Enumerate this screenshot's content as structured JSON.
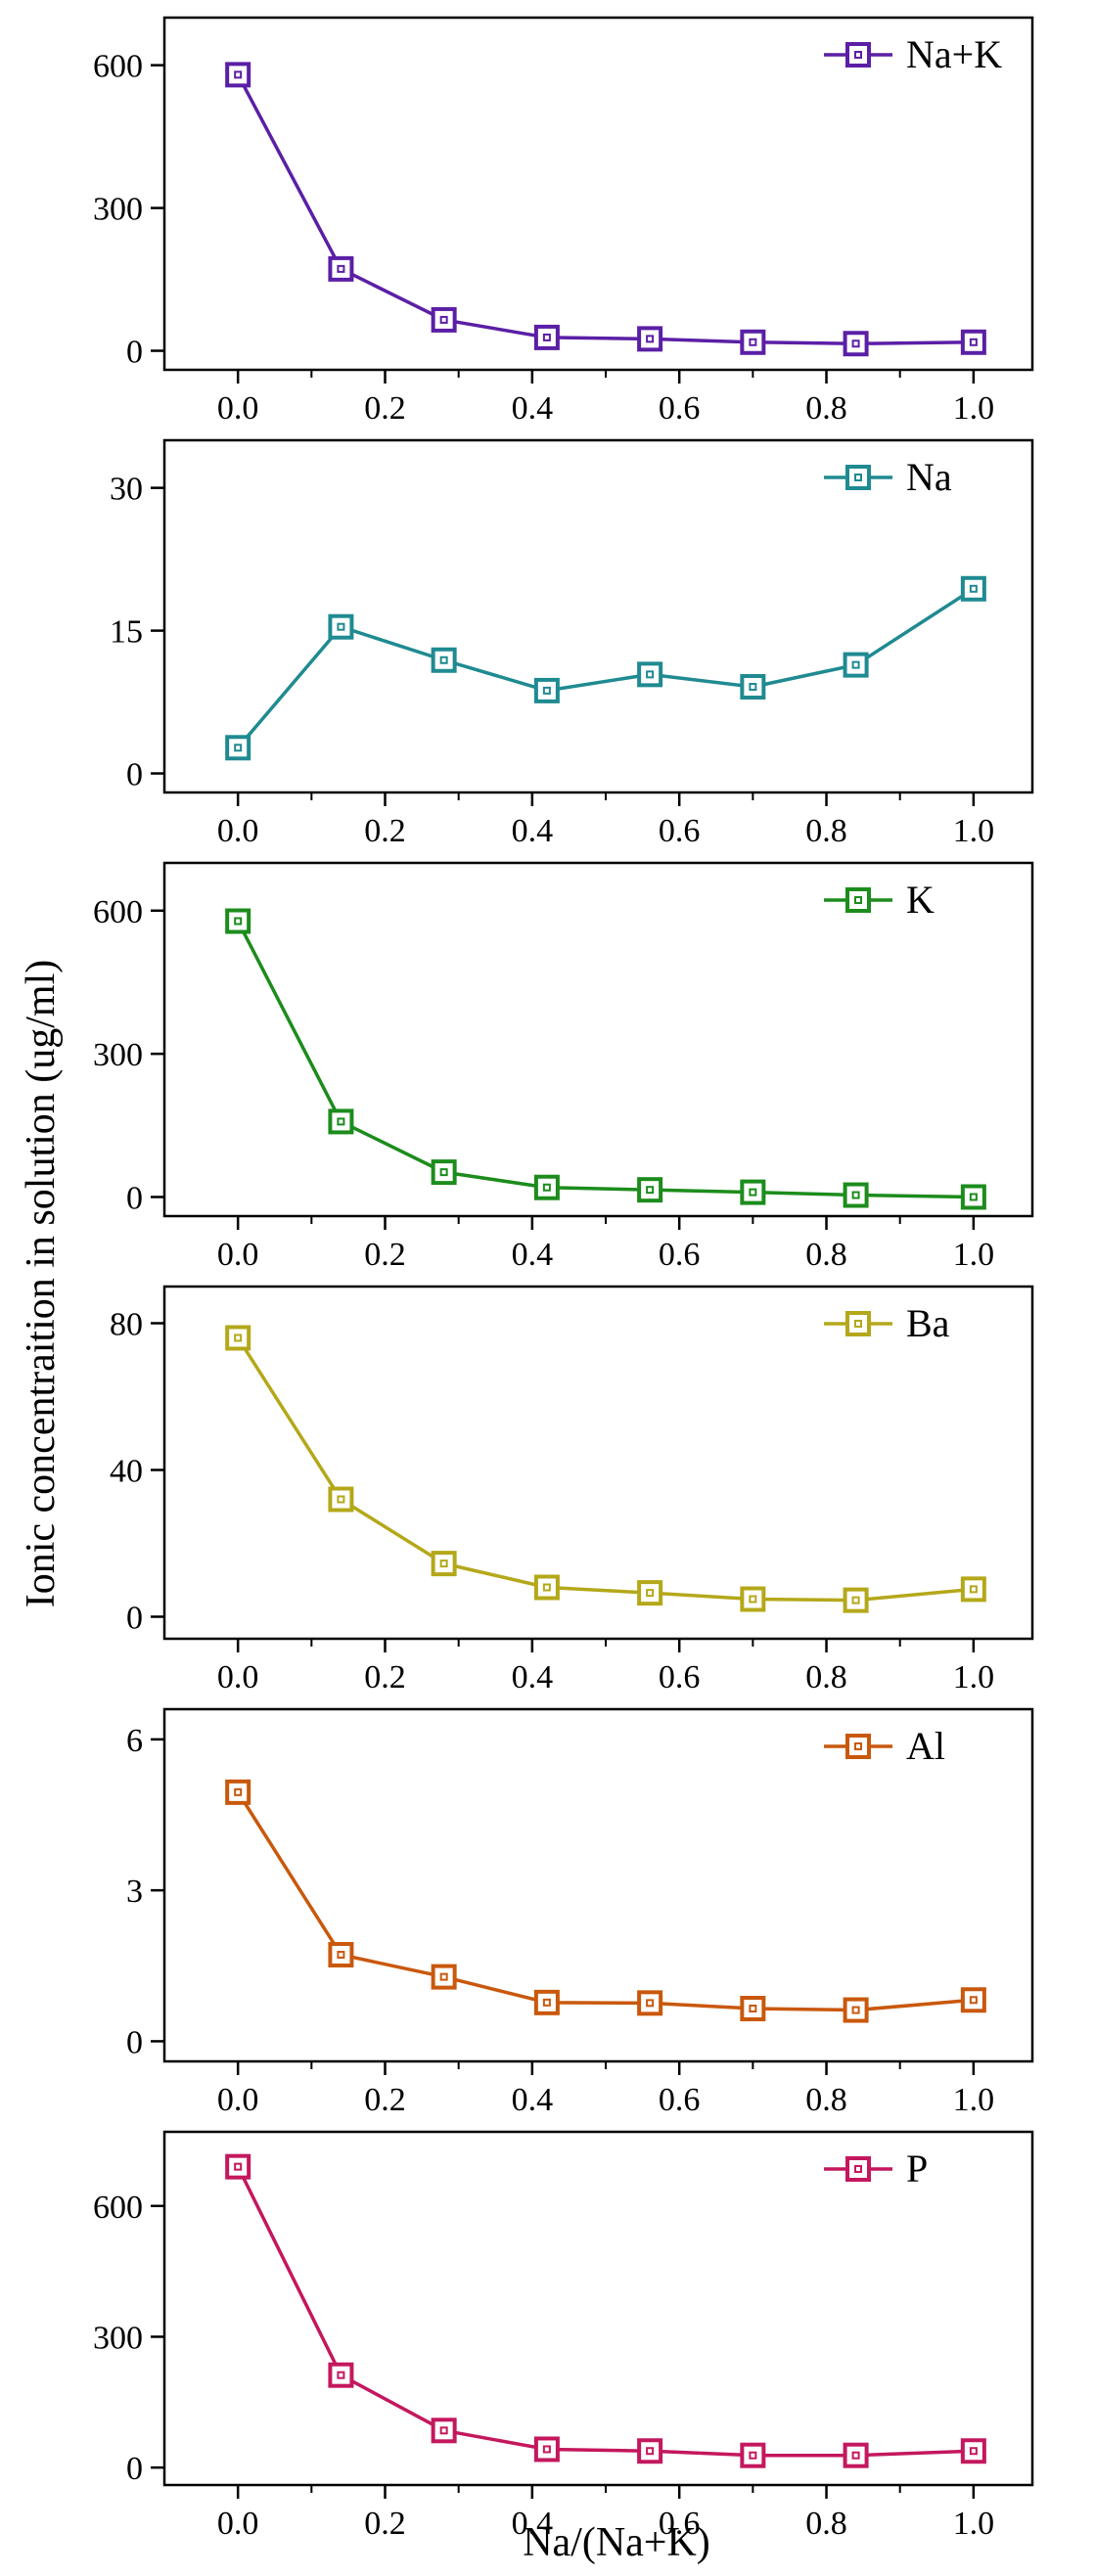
{
  "figure": {
    "ylabel": "Ionic concentraition  in solution (ug/ml)",
    "xlabel": "Na/(Na+K)"
  },
  "chart_data": [
    {
      "type": "line",
      "series_name": "Na+K",
      "color": "#5b1fa6",
      "x": [
        0.0,
        0.14,
        0.28,
        0.42,
        0.56,
        0.7,
        0.84,
        1.0
      ],
      "values": [
        580,
        172,
        65,
        28,
        25,
        18,
        15,
        18
      ],
      "ylim": [
        -40,
        700
      ],
      "yticks": [
        0,
        300,
        600
      ],
      "ytick_labels": [
        "0",
        "300",
        "600"
      ],
      "xlim": [
        -0.1,
        1.08
      ],
      "xticks": [
        0.0,
        0.2,
        0.4,
        0.6,
        0.8,
        1.0
      ],
      "xtick_labels": [
        "0.0",
        "0.2",
        "0.4",
        "0.6",
        "0.8",
        "1.0"
      ],
      "legend": "top-right"
    },
    {
      "type": "line",
      "series_name": "Na",
      "color": "#1f8a91",
      "x": [
        0.0,
        0.14,
        0.28,
        0.42,
        0.56,
        0.7,
        0.84,
        1.0
      ],
      "values": [
        2.7,
        15.4,
        11.9,
        8.7,
        10.4,
        9.1,
        11.4,
        19.4
      ],
      "ylim": [
        -2,
        35
      ],
      "yticks": [
        0,
        15,
        30
      ],
      "ytick_labels": [
        "0",
        "15",
        "30"
      ],
      "xlim": [
        -0.1,
        1.08
      ],
      "xticks": [
        0.0,
        0.2,
        0.4,
        0.6,
        0.8,
        1.0
      ],
      "xtick_labels": [
        "0.0",
        "0.2",
        "0.4",
        "0.6",
        "0.8",
        "1.0"
      ],
      "legend": "top-right"
    },
    {
      "type": "line",
      "series_name": "K",
      "color": "#1c8c1c",
      "x": [
        0.0,
        0.14,
        0.28,
        0.42,
        0.56,
        0.7,
        0.84,
        1.0
      ],
      "values": [
        578,
        158,
        52,
        20,
        15,
        10,
        4,
        0
      ],
      "ylim": [
        -40,
        700
      ],
      "yticks": [
        0,
        300,
        600
      ],
      "ytick_labels": [
        "0",
        "300",
        "600"
      ],
      "xlim": [
        -0.1,
        1.08
      ],
      "xticks": [
        0.0,
        0.2,
        0.4,
        0.6,
        0.8,
        1.0
      ],
      "xtick_labels": [
        "0.0",
        "0.2",
        "0.4",
        "0.6",
        "0.8",
        "1.0"
      ],
      "legend": "top-right"
    },
    {
      "type": "line",
      "series_name": "Ba",
      "color": "#b4a81a",
      "x": [
        0.0,
        0.14,
        0.28,
        0.42,
        0.56,
        0.7,
        0.84,
        1.0
      ],
      "values": [
        76,
        32,
        14.5,
        8,
        6.5,
        4.8,
        4.5,
        7.5
      ],
      "ylim": [
        -6,
        90
      ],
      "yticks": [
        0,
        40,
        80
      ],
      "ytick_labels": [
        "0",
        "40",
        "80"
      ],
      "xlim": [
        -0.1,
        1.08
      ],
      "xticks": [
        0.0,
        0.2,
        0.4,
        0.6,
        0.8,
        1.0
      ],
      "xtick_labels": [
        "0.0",
        "0.2",
        "0.4",
        "0.6",
        "0.8",
        "1.0"
      ],
      "legend": "top-right"
    },
    {
      "type": "line",
      "series_name": "Al",
      "color": "#c9580c",
      "x": [
        0.0,
        0.14,
        0.28,
        0.42,
        0.56,
        0.7,
        0.84,
        1.0
      ],
      "values": [
        4.95,
        1.72,
        1.28,
        0.77,
        0.76,
        0.65,
        0.62,
        0.82
      ],
      "ylim": [
        -0.4,
        6.6
      ],
      "yticks": [
        0,
        3,
        6
      ],
      "ytick_labels": [
        "0",
        "3",
        "6"
      ],
      "xlim": [
        -0.1,
        1.08
      ],
      "xticks": [
        0.0,
        0.2,
        0.4,
        0.6,
        0.8,
        1.0
      ],
      "xtick_labels": [
        "0.0",
        "0.2",
        "0.4",
        "0.6",
        "0.8",
        "1.0"
      ],
      "legend": "top-right"
    },
    {
      "type": "line",
      "series_name": "P",
      "color": "#c4175e",
      "x": [
        0.0,
        0.14,
        0.28,
        0.42,
        0.56,
        0.7,
        0.84,
        1.0
      ],
      "values": [
        690,
        212,
        85,
        42,
        38,
        28,
        28,
        38
      ],
      "ylim": [
        -40,
        770
      ],
      "yticks": [
        0,
        300,
        600
      ],
      "ytick_labels": [
        "0",
        "300",
        "600"
      ],
      "xlim": [
        -0.1,
        1.08
      ],
      "xticks": [
        0.0,
        0.2,
        0.4,
        0.6,
        0.8,
        1.0
      ],
      "xtick_labels": [
        "0.0",
        "0.2",
        "0.4",
        "0.6",
        "0.8",
        "1.0"
      ],
      "legend": "top-right"
    }
  ]
}
